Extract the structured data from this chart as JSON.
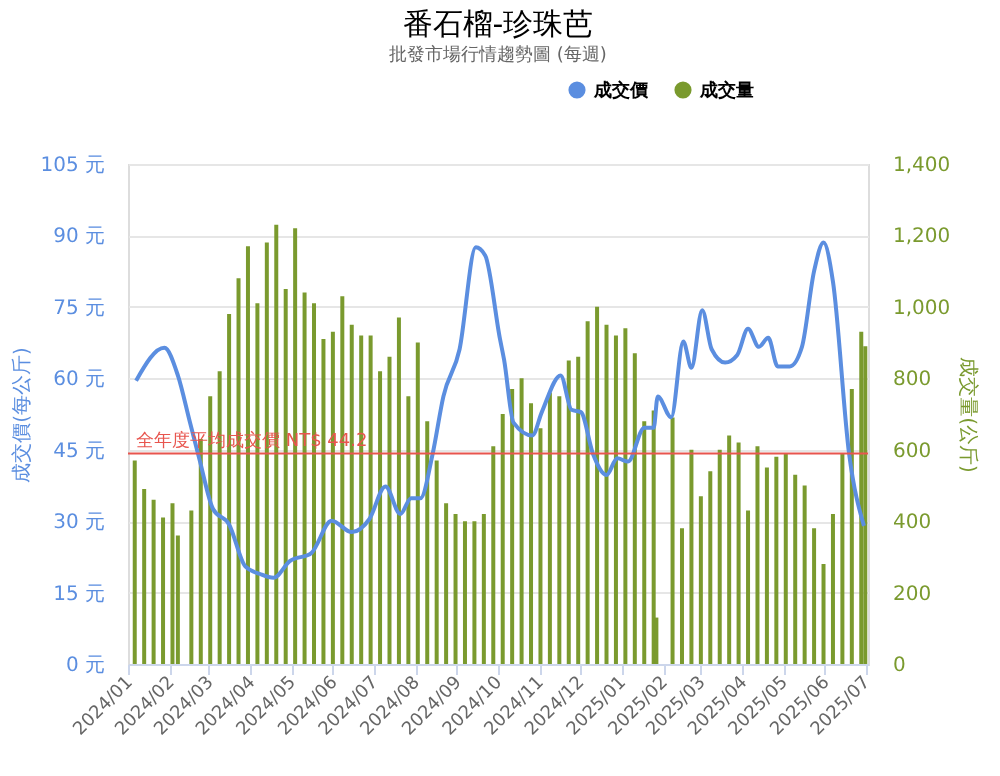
{
  "chart_data": {
    "type": "bar",
    "title": "番石榴-珍珠芭",
    "subtitle": "批發市場行情趨勢圖 (每週)",
    "ylabel": "成交價(每公斤)",
    "y2label": "成交量(公斤)",
    "xlim": [
      "2024-01-01",
      "2025-07-03"
    ],
    "xticks": [
      {
        "value": "2024-01-01",
        "label": "2024/01"
      },
      {
        "value": "2024-02-01",
        "label": "2024/02"
      },
      {
        "value": "2024-03-01",
        "label": "2024/03"
      },
      {
        "value": "2024-04-01",
        "label": "2024/04"
      },
      {
        "value": "2024-05-01",
        "label": "2024/05"
      },
      {
        "value": "2024-06-01",
        "label": "2024/06"
      },
      {
        "value": "2024-07-01",
        "label": "2024/07"
      },
      {
        "value": "2024-08-01",
        "label": "2024/08"
      },
      {
        "value": "2024-09-01",
        "label": "2024/09"
      },
      {
        "value": "2024-10-01",
        "label": "2024/10"
      },
      {
        "value": "2024-11-01",
        "label": "2024/11"
      },
      {
        "value": "2024-12-01",
        "label": "2024/12"
      },
      {
        "value": "2025-01-01",
        "label": "2025/01"
      },
      {
        "value": "2025-02-01",
        "label": "2025/02"
      },
      {
        "value": "2025-03-01",
        "label": "2025/03"
      },
      {
        "value": "2025-04-01",
        "label": "2025/04"
      },
      {
        "value": "2025-05-01",
        "label": "2025/05"
      },
      {
        "value": "2025-06-01",
        "label": "2025/06"
      },
      {
        "value": "2025-07-01",
        "label": "2025/07"
      }
    ],
    "ylim": [
      0,
      105
    ],
    "yticks": [
      {
        "value": 0,
        "label": "0 元"
      },
      {
        "value": 15,
        "label": "15 元"
      },
      {
        "value": 30,
        "label": "30 元"
      },
      {
        "value": 45,
        "label": "45 元"
      },
      {
        "value": 60,
        "label": "60 元"
      },
      {
        "value": 75,
        "label": "75 元"
      },
      {
        "value": 90,
        "label": "90 元"
      },
      {
        "value": 105,
        "label": "105 元"
      }
    ],
    "y2lim": [
      0,
      1400
    ],
    "y2ticks": [
      0,
      200,
      400,
      600,
      800,
      {
        "value": 1000,
        "label": "1,000"
      },
      {
        "value": 1200,
        "label": "1,200"
      },
      {
        "value": 1400,
        "label": "1,400"
      }
    ],
    "grid": "y",
    "legend": "top right",
    "line_style": "solid",
    "ref_lines": [
      {
        "axis": "y",
        "value": 44.2,
        "label": "全年度平均成交價 NT$ 44.2",
        "color": "#e8554e"
      }
    ],
    "series": [
      {
        "name": "成交價",
        "type": "line",
        "axis": "y",
        "color": "#5b8ee0",
        "x": [
          "2024-01-07",
          "2024-01-28",
          "2024-02-07",
          "2024-02-16",
          "2024-02-23",
          "2024-03-04",
          "2024-03-16",
          "2024-03-28",
          "2024-04-08",
          "2024-04-18",
          "2024-04-30",
          "2024-05-16",
          "2024-05-31",
          "2024-06-15",
          "2024-06-28",
          "2024-07-10",
          "2024-07-21",
          "2024-07-29",
          "2024-08-05",
          "2024-08-14",
          "2024-08-22",
          "2024-09-03",
          "2024-09-15",
          "2024-09-22",
          "2024-10-03",
          "2024-10-06",
          "2024-10-13",
          "2024-10-27",
          "2024-11-03",
          "2024-11-17",
          "2024-11-25",
          "2024-12-02",
          "2024-12-11",
          "2024-12-21",
          "2024-12-29",
          "2025-01-06",
          "2025-01-18",
          "2025-01-25",
          "2025-01-28",
          "2025-02-07",
          "2025-02-16",
          "2025-02-22",
          "2025-03-02",
          "2025-03-09",
          "2025-03-19",
          "2025-03-28",
          "2025-04-05",
          "2025-04-13",
          "2025-04-20",
          "2025-04-27",
          "2025-05-06",
          "2025-05-15",
          "2025-05-24",
          "2025-05-31",
          "2025-06-07",
          "2025-06-19",
          "2025-06-30"
        ],
        "values": [
          59.5,
          66.4,
          60.6,
          50.7,
          43,
          32.6,
          29.3,
          20.5,
          18.9,
          18.1,
          21.6,
          23.3,
          30.1,
          27.7,
          30.4,
          37.3,
          31.5,
          34.8,
          34.8,
          44.1,
          56.2,
          66.1,
          87.5,
          85.8,
          68.2,
          63.9,
          50.7,
          48,
          52.9,
          60.6,
          53.4,
          52.9,
          44.1,
          39.7,
          43.2,
          42.5,
          49.6,
          49.6,
          56.2,
          51.8,
          67.7,
          62.2,
          74.3,
          66.1,
          63.3,
          64.9,
          70.4,
          66.6,
          68.5,
          62.5,
          62.5,
          66.6,
          82.5,
          88.5,
          80.3,
          44.1,
          29
        ]
      },
      {
        "name": "成交量",
        "axis": "y2",
        "color": "#7a9a2e",
        "x": [
          "2024-01-06",
          "2024-01-13",
          "2024-01-20",
          "2024-01-27",
          "2024-02-03",
          "2024-02-07",
          "2024-02-17",
          "2024-02-24",
          "2024-03-02",
          "2024-03-09",
          "2024-03-16",
          "2024-03-23",
          "2024-03-30",
          "2024-04-06",
          "2024-04-13",
          "2024-04-20",
          "2024-04-27",
          "2024-05-04",
          "2024-05-11",
          "2024-05-18",
          "2024-05-25",
          "2024-06-01",
          "2024-06-08",
          "2024-06-15",
          "2024-06-22",
          "2024-06-29",
          "2024-07-06",
          "2024-07-13",
          "2024-07-20",
          "2024-07-27",
          "2024-08-03",
          "2024-08-10",
          "2024-08-17",
          "2024-08-24",
          "2024-08-31",
          "2024-09-07",
          "2024-09-14",
          "2024-09-21",
          "2024-09-28",
          "2024-10-05",
          "2024-10-12",
          "2024-10-19",
          "2024-10-26",
          "2024-11-02",
          "2024-11-09",
          "2024-11-16",
          "2024-11-23",
          "2024-11-30",
          "2024-12-07",
          "2024-12-14",
          "2024-12-21",
          "2024-12-28",
          "2025-01-04",
          "2025-01-11",
          "2025-01-18",
          "2025-01-25",
          "2025-01-27",
          "2025-02-08",
          "2025-02-15",
          "2025-02-22",
          "2025-03-01",
          "2025-03-08",
          "2025-03-15",
          "2025-03-22",
          "2025-03-29",
          "2025-04-05",
          "2025-04-12",
          "2025-04-19",
          "2025-04-26",
          "2025-05-03",
          "2025-05-10",
          "2025-05-17",
          "2025-05-24",
          "2025-05-31",
          "2025-06-07",
          "2025-06-14",
          "2025-06-21",
          "2025-06-28",
          "2025-07-01"
        ],
        "values": [
          570,
          490,
          460,
          410,
          450,
          360,
          430,
          630,
          750,
          820,
          980,
          1080,
          1170,
          1010,
          1180,
          1230,
          1050,
          1220,
          1040,
          1010,
          910,
          930,
          1030,
          950,
          920,
          920,
          820,
          860,
          970,
          750,
          900,
          680,
          570,
          450,
          420,
          400,
          400,
          420,
          610,
          700,
          770,
          800,
          730,
          660,
          760,
          750,
          850,
          860,
          960,
          1000,
          950,
          920,
          940,
          870,
          680,
          710,
          130,
          690,
          380,
          600,
          470,
          540,
          600,
          640,
          620,
          430,
          610,
          550,
          580,
          590,
          530,
          500,
          380,
          280,
          420,
          590,
          770,
          930,
          890
        ]
      }
    ]
  }
}
